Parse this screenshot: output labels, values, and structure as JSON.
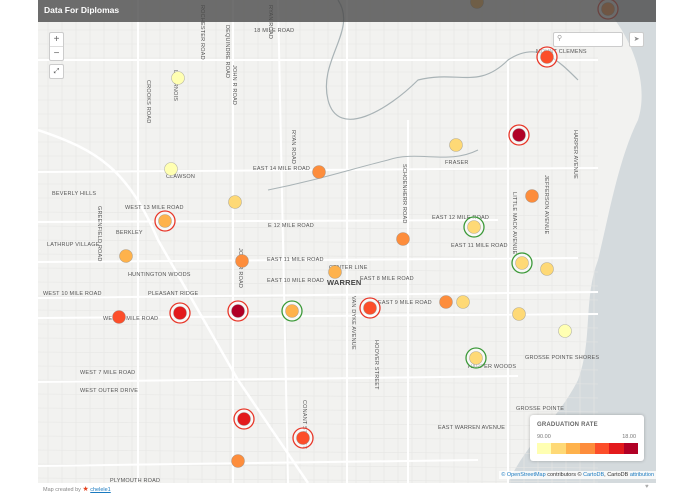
{
  "header": {
    "title": "Data For Diplomas"
  },
  "controls": {
    "zoom_in": "+",
    "zoom_out": "−",
    "search_placeholder": "",
    "search_icon": "search-icon",
    "locate_icon": "navigation-arrow-icon",
    "fullscreen_icon": "fullscreen-icon"
  },
  "legend": {
    "title": "GRADUATION RATE",
    "min": "90.00",
    "max": "18.00",
    "colors": [
      "#ffffb2",
      "#fed976",
      "#feb24c",
      "#fd8d3c",
      "#fc4e2a",
      "#e31a1c",
      "#b10026"
    ]
  },
  "ring_colors": {
    "red": "#e8382a",
    "green": "#3d9a3a"
  },
  "attribution": {
    "osm": "© OpenStreetMap",
    "contributors": " contributors © ",
    "cartodb": "CartoDB",
    "sep": ", CartoDB ",
    "attribution": "attribution"
  },
  "footer": {
    "prefix": "Map created by ",
    "author": "chelele1"
  },
  "map_labels": [
    "ROCHESTER ROAD",
    "RYAN ROAD",
    "DEQUINDRE ROAD",
    "18 MILE ROAD",
    "JOHN R ROAD",
    "LIVERNOIS",
    "CROOKS ROAD",
    "MOUNT CLEMENS",
    "EAST 14 MILE ROAD",
    "CLAWSON",
    "BEVERLY HILLS",
    "WEST 13 MILE ROAD",
    "BERKLEY",
    "GREENFIELD ROAD",
    "LATHRUP VILLAGE",
    "E 12 MILE ROAD",
    "EAST 11 MILE ROAD",
    "HUNTINGTON WOODS",
    "CENTER LINE",
    "WARREN",
    "EAST 10 MILE ROAD",
    "WEST 10 MILE ROAD",
    "PLEASANT RIDGE",
    "WEST 8 MILE ROAD",
    "EAST 8 MILE ROAD",
    "EAST 9 MILE ROAD",
    "EAST 12 MILE ROAD",
    "EAST 11 MILE ROAD",
    "FRASER",
    "SCHOENHERR ROAD",
    "HARPER AVENUE",
    "JEFFERSON AVENUE",
    "LITTLE MACK AVENUE",
    "WEST 7 MILE ROAD",
    "WEST OUTER DRIVE",
    "GROSSE POINTE SHORES",
    "HARPER WOODS",
    "GROSSE POINTE",
    "VAN DYKE AVENUE",
    "HOOVER STREET",
    "CONANT STREET",
    "PLYMOUTH ROAD",
    "EAST WARREN AVENUE",
    "JOHN R ROAD",
    "RYAN ROAD"
  ]
}
